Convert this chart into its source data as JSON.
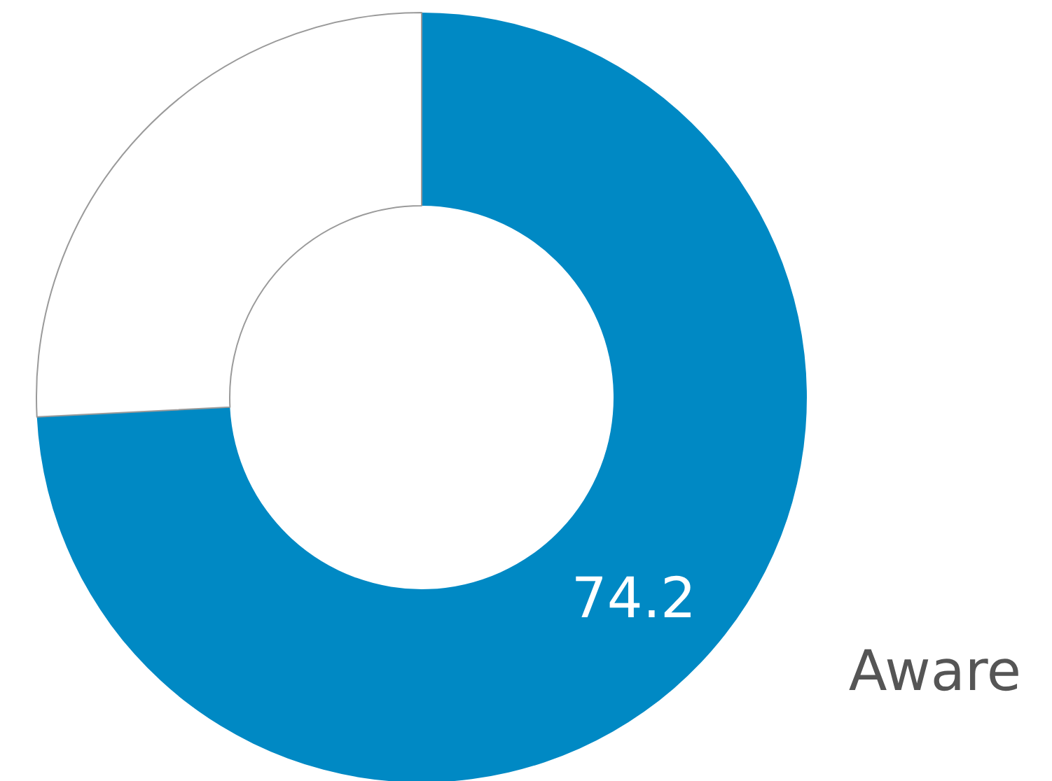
{
  "chart_data": {
    "type": "donut",
    "categories": [
      "Aware",
      null
    ],
    "values": [
      74.2,
      25.8
    ],
    "value_labels": [
      "74.2",
      null
    ],
    "colors": [
      "#0089c4",
      "#ffffff"
    ]
  }
}
